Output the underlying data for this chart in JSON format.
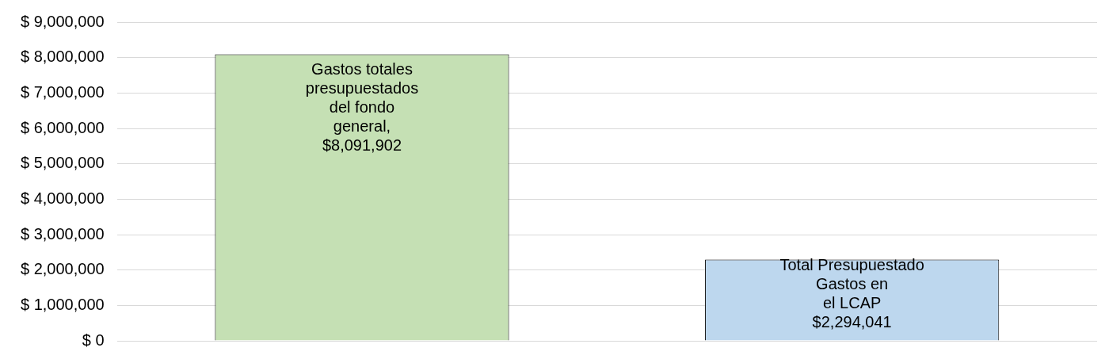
{
  "chart_data": {
    "type": "bar",
    "categories": [
      null,
      null
    ],
    "values": [
      8091902,
      2294041
    ],
    "colors": [
      "#c5e0b4",
      "#bdd7ee"
    ],
    "value_labels": [
      "Gastos totales\npresupuestados\ndel fondo\ngeneral,\n$8,091,902",
      "Total Presupuestado\nGastos en\nel LCAP\n$2,294,041"
    ],
    "ylim": [
      0,
      9000000
    ],
    "yticks": [
      {
        "value": 0,
        "label": "$ 0"
      },
      {
        "value": 1000000,
        "label": "$ 1,000,000"
      },
      {
        "value": 2000000,
        "label": "$ 2,000,000"
      },
      {
        "value": 3000000,
        "label": "$ 3,000,000"
      },
      {
        "value": 4000000,
        "label": "$ 4,000,000"
      },
      {
        "value": 5000000,
        "label": "$ 5,000,000"
      },
      {
        "value": 6000000,
        "label": "$ 6,000,000"
      },
      {
        "value": 7000000,
        "label": "$ 7,000,000"
      },
      {
        "value": 8000000,
        "label": "$ 8,000,000"
      },
      {
        "value": 9000000,
        "label": "$ 9,000,000"
      }
    ],
    "grid": "y",
    "tick_labels": "y"
  }
}
